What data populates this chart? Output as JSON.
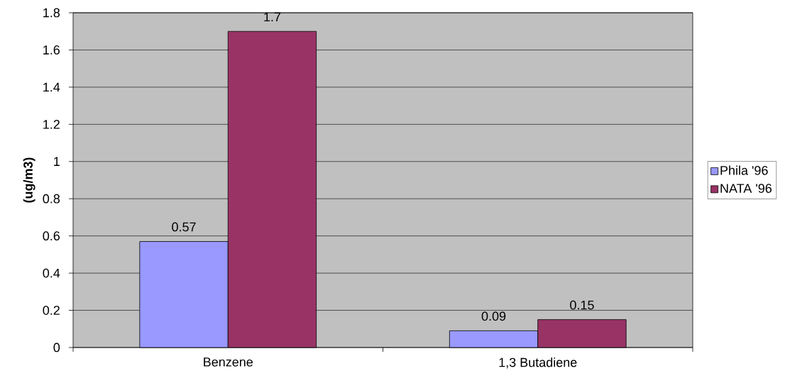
{
  "chart_data": {
    "type": "bar",
    "ylabel": "(ug/m3)",
    "categories": [
      "Benzene",
      "1,3 Butadiene"
    ],
    "series": [
      {
        "name": "Phila '96",
        "color": "#9999ff",
        "values": [
          0.57,
          0.09
        ]
      },
      {
        "name": "NATA '96",
        "color": "#993366",
        "values": [
          1.7,
          0.15
        ]
      }
    ],
    "ylim": [
      0,
      1.8
    ],
    "yticks": [
      0,
      0.2,
      0.4,
      0.6,
      0.8,
      1,
      1.2,
      1.4,
      1.6,
      1.8
    ],
    "grid": "y",
    "legend": "right",
    "data_labels": true
  }
}
